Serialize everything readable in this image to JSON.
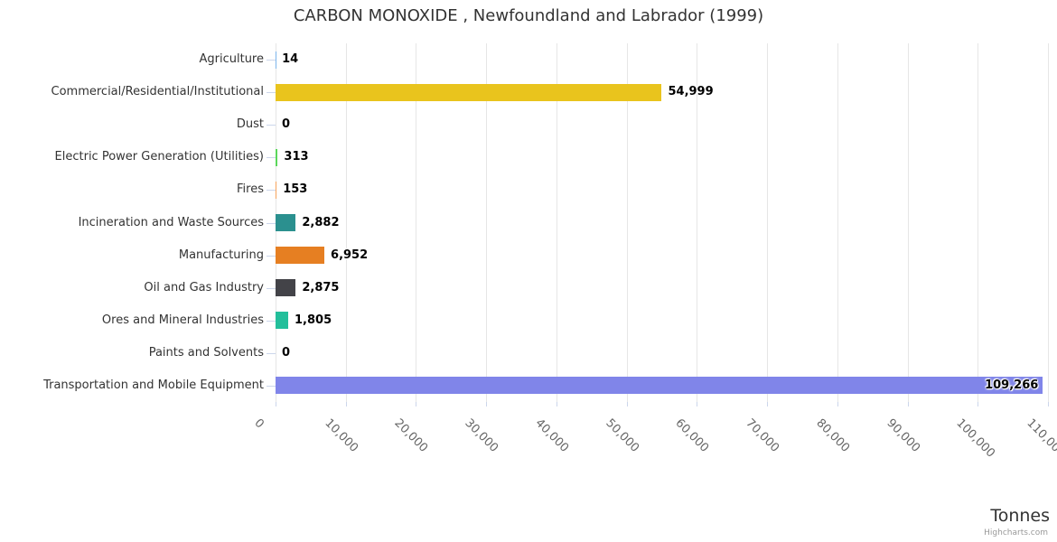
{
  "title": "CARBON MONOXIDE , Newfoundland and Labrador (1999)",
  "credits_label": "Highcharts.com",
  "chart_data": {
    "type": "bar",
    "orientation": "horizontal",
    "title": "CARBON MONOXIDE , Newfoundland and Labrador (1999)",
    "xlabel": "Tonnes",
    "ylabel": "",
    "categories": [
      "Agriculture",
      "Commercial/Residential/Institutional",
      "Dust",
      "Electric Power Generation (Utilities)",
      "Fires",
      "Incineration and Waste Sources",
      "Manufacturing",
      "Oil and Gas Industry",
      "Ores and Mineral Industries",
      "Paints and Solvents",
      "Transportation and Mobile Equipment"
    ],
    "values": [
      14,
      54999,
      0,
      313,
      153,
      2882,
      6952,
      2875,
      1805,
      0,
      109266
    ],
    "value_labels": [
      "14",
      "54,999",
      "0",
      "313",
      "153",
      "2,882",
      "6,952",
      "2,875",
      "1,805",
      "0",
      "109,266"
    ],
    "bar_colors": [
      "#7cb5ec",
      "#e9c41d",
      "#f15c80",
      "#5bd75b",
      "#f7a35c",
      "#2b908f",
      "#e67f22",
      "#434348",
      "#23bf9b",
      "#91e8e1",
      "#8085e9"
    ],
    "xlim": [
      0,
      110000
    ],
    "tick_interval": 10000,
    "tick_labels": [
      "0",
      "10,000",
      "20,000",
      "30,000",
      "40,000",
      "50,000",
      "60,000",
      "70,000",
      "80,000",
      "90,000",
      "100,000",
      "110,000"
    ],
    "grid": true,
    "legend": false
  },
  "colors": {
    "grid_line": "#e6e6e6",
    "axis_line": "#ccd6eb",
    "title_text": "#333333",
    "category_text": "#333333",
    "tick_text": "#666666",
    "credits_text": "#999999"
  }
}
